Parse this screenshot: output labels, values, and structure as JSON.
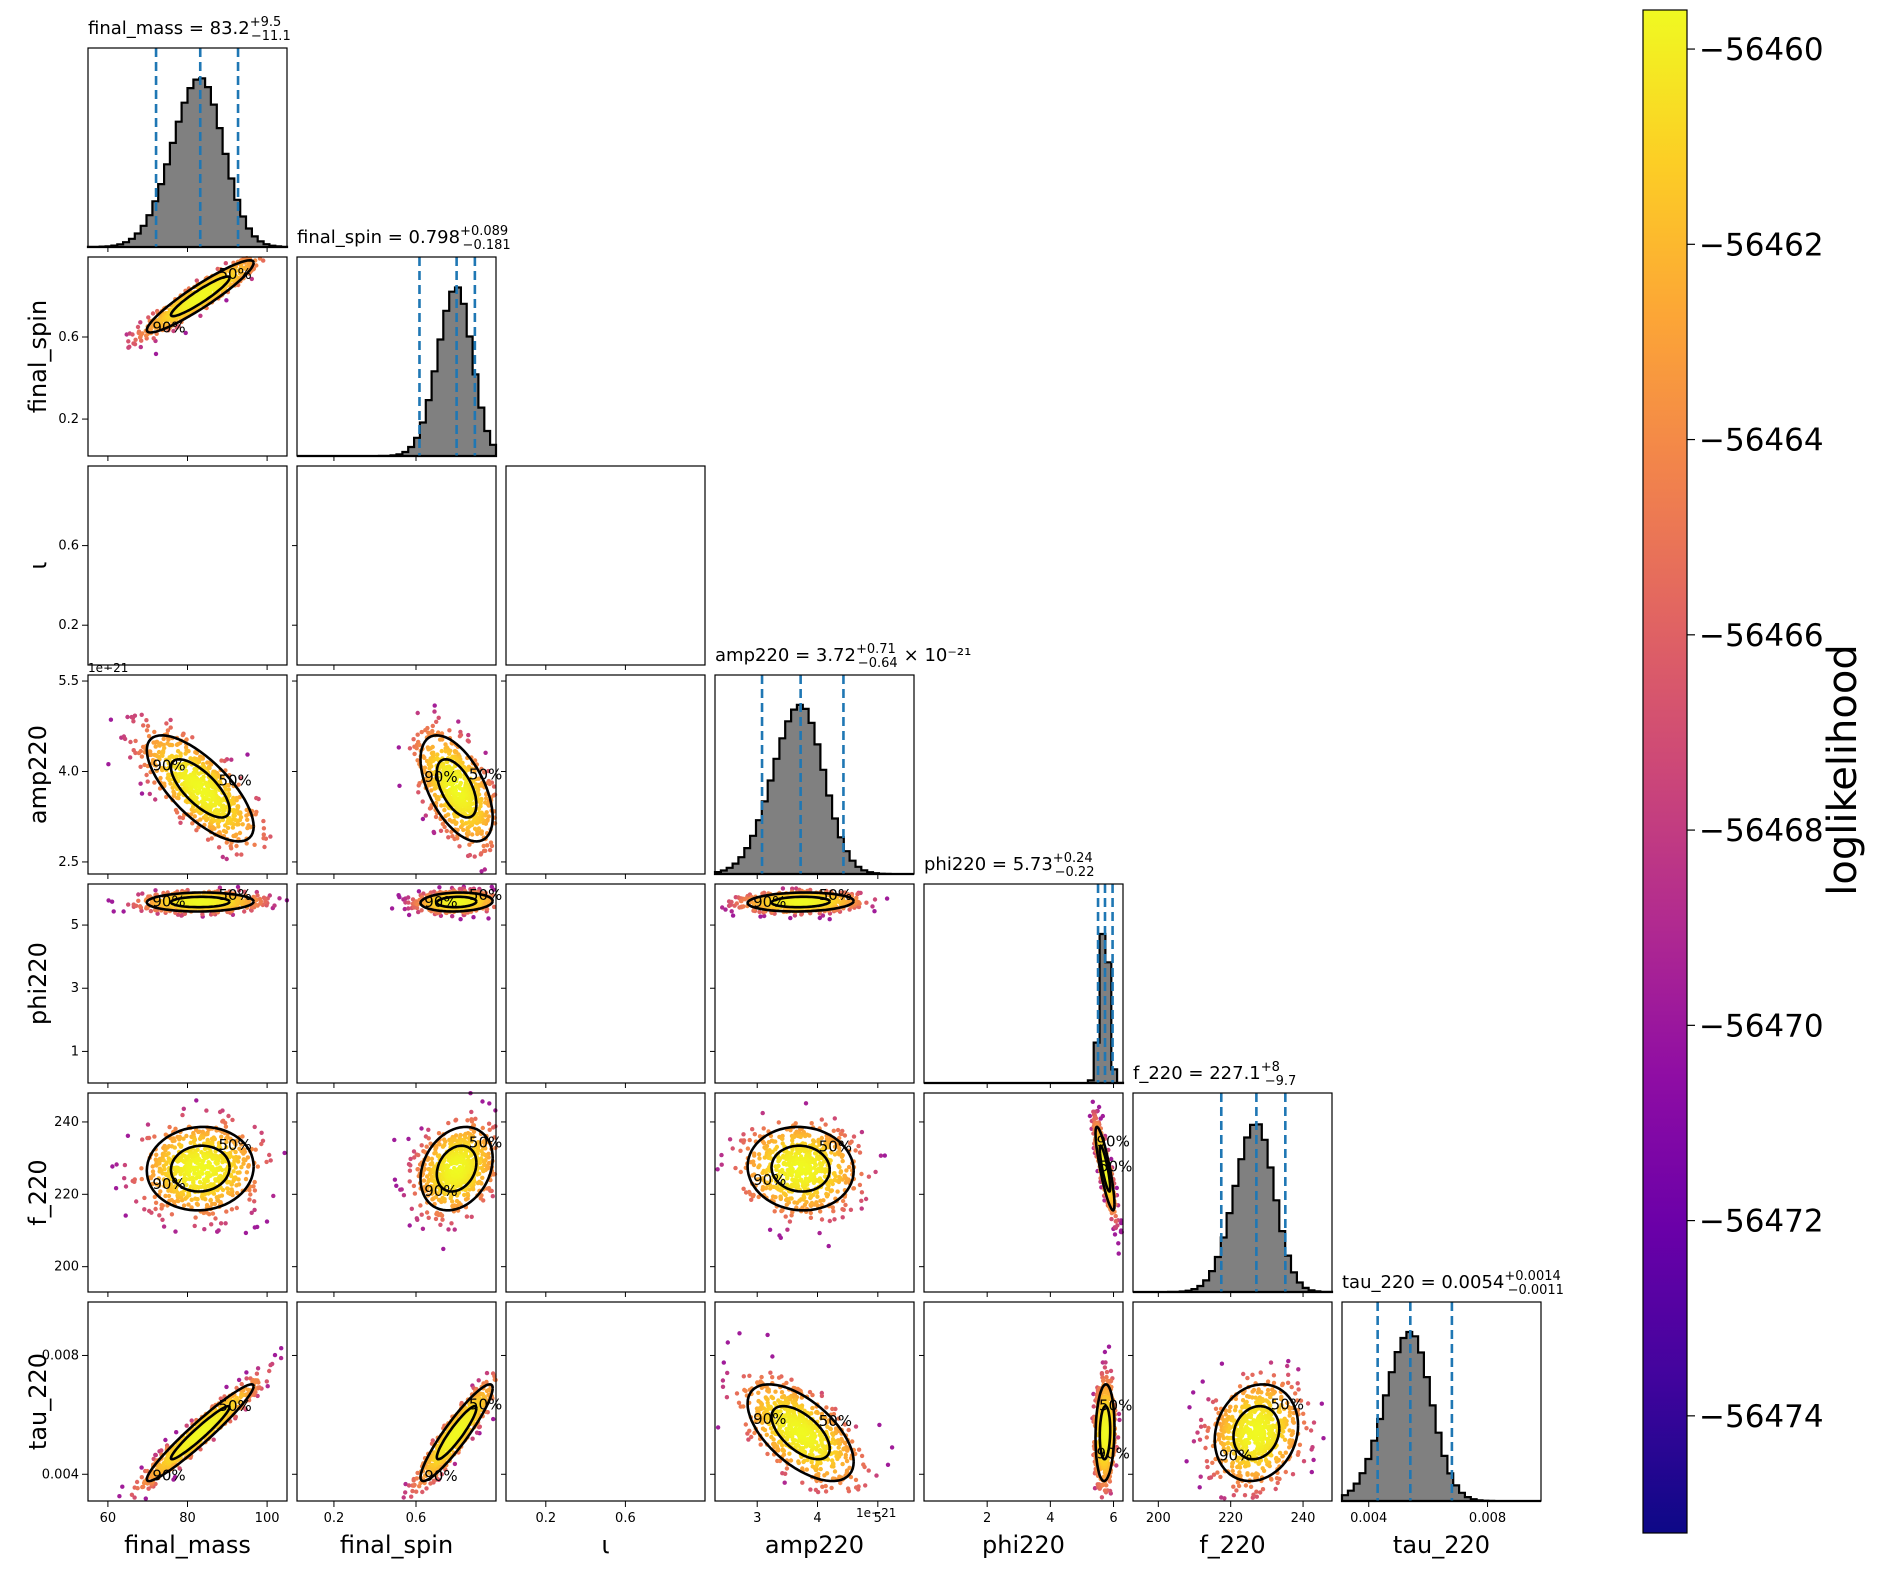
{
  "chart_data": {
    "type": "scatter",
    "subtype": "corner-plot",
    "parameters": [
      {
        "key": "final_mass",
        "label": "final_mass",
        "range": [
          55,
          105
        ],
        "ticks": [
          60,
          80,
          100
        ],
        "tick_labels": [
          "60",
          "80",
          "100"
        ],
        "median": 83.2,
        "lo": 72.1,
        "hi": 92.7,
        "title_value": "83.2",
        "title_plus": "+9.5",
        "title_minus": "−11.1",
        "title_exp": ""
      },
      {
        "key": "final_spin",
        "label": "final_spin",
        "range": [
          0.02,
          0.99
        ],
        "ticks": [
          0.2,
          0.6
        ],
        "tick_labels": [
          "0.2",
          "0.6"
        ],
        "median": 0.798,
        "lo": 0.617,
        "hi": 0.887,
        "title_value": "0.798",
        "title_plus": "+0.089",
        "title_minus": "−0.181",
        "title_exp": ""
      },
      {
        "key": "inclination",
        "label": "ι",
        "range": [
          0.0,
          1.0
        ],
        "ticks": [
          0.2,
          0.6
        ],
        "tick_labels": [
          "0.2",
          "0.6"
        ],
        "median": null,
        "lo": null,
        "hi": null,
        "title_value": "",
        "title_plus": "",
        "title_minus": "",
        "title_exp": ""
      },
      {
        "key": "amp220",
        "label": "amp220",
        "range": [
          2.3,
          5.6
        ],
        "ticks": [
          2.5,
          4.0,
          5.5
        ],
        "tick_labels": [
          "2.5",
          "4.0",
          "5.5"
        ],
        "xticks": [
          3,
          4,
          5
        ],
        "xtick_labels": [
          "3",
          "4",
          "5"
        ],
        "offset": "1e−21",
        "median": 3.72,
        "lo": 3.08,
        "hi": 4.43,
        "title_value": "3.72",
        "title_plus": "+0.71",
        "title_minus": "−0.64",
        "title_exp": "× 10⁻²¹"
      },
      {
        "key": "phi220",
        "label": "phi220",
        "range": [
          0.0,
          6.3
        ],
        "ticks": [
          1,
          3,
          5
        ],
        "tick_labels": [
          "1",
          "3",
          "5"
        ],
        "xticks": [
          2,
          4,
          6
        ],
        "xtick_labels": [
          "2",
          "4",
          "6"
        ],
        "median": 5.73,
        "lo": 5.51,
        "hi": 5.97,
        "title_value": "5.73",
        "title_plus": "+0.24",
        "title_minus": "−0.22",
        "title_exp": ""
      },
      {
        "key": "f_220",
        "label": "f_220",
        "range": [
          193,
          248
        ],
        "ticks": [
          200,
          220,
          240
        ],
        "tick_labels": [
          "200",
          "220",
          "240"
        ],
        "median": 227.1,
        "lo": 217.4,
        "hi": 235.1,
        "title_value": "227.1",
        "title_plus": "+8",
        "title_minus": "−9.7",
        "title_exp": ""
      },
      {
        "key": "tau_220",
        "label": "tau_220",
        "range": [
          0.0031,
          0.0098
        ],
        "ticks": [
          0.004,
          0.008
        ],
        "tick_labels": [
          "0.004",
          "0.008"
        ],
        "median": 0.0054,
        "lo": 0.0043,
        "hi": 0.0068,
        "title_value": "0.0054",
        "title_plus": "+0.0014",
        "title_minus": "−0.0011",
        "title_exp": ""
      }
    ],
    "contour_labels": [
      "50%",
      "90%"
    ],
    "colorbar": {
      "label": "loglikelihood",
      "range": [
        -56475.2,
        -56459.6
      ],
      "ticks": [
        -56460,
        -56462,
        -56464,
        -56466,
        -56468,
        -56470,
        -56472,
        -56474
      ],
      "tick_labels": [
        "−56460",
        "−56462",
        "−56464",
        "−56466",
        "−56468",
        "−56470",
        "−56472",
        "−56474"
      ],
      "colormap": "plasma"
    },
    "colors": {
      "hist_fill": "#808080",
      "quantile_line": "#1f77b4",
      "contour": "#000000"
    }
  }
}
